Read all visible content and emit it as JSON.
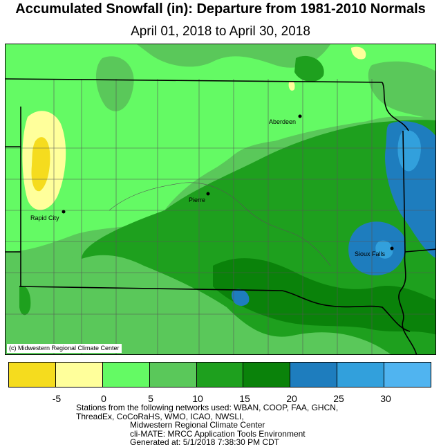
{
  "header": {
    "title": "Accumulated Snowfall (in): Departure from 1981-2010 Normals",
    "subtitle": "April 01, 2018 to April 30, 2018"
  },
  "map": {
    "credit": "(c) Midwestern Regional Climate Center",
    "cities": [
      {
        "name": "Aberdeen"
      },
      {
        "name": "Pierre"
      },
      {
        "name": "Rapid City"
      },
      {
        "name": "Sioux Falls"
      }
    ]
  },
  "legend": {
    "colors": [
      "#f5dc1e",
      "#ffff9b",
      "#64fa64",
      "#5ac85a",
      "#1ea01e",
      "#0a820a",
      "#1e7dbe",
      "#32a0dc",
      "#50b4f0"
    ],
    "tick_labels": [
      "-5",
      "0",
      "5",
      "10",
      "15",
      "20",
      "25",
      "30"
    ]
  },
  "footer": {
    "lines": [
      "Stations from the following networks used: WBAN, COOP, FAA, GHCN,",
      "ThreadEx, CoCoRaHS, WMO, ICAO, NWSLI,",
      "Midwestern Regional Climate Center",
      "cli-MATE: MRCC Application Tools Environment",
      "Generated at: 5/1/2018 7:38:30 PM CDT"
    ]
  }
}
